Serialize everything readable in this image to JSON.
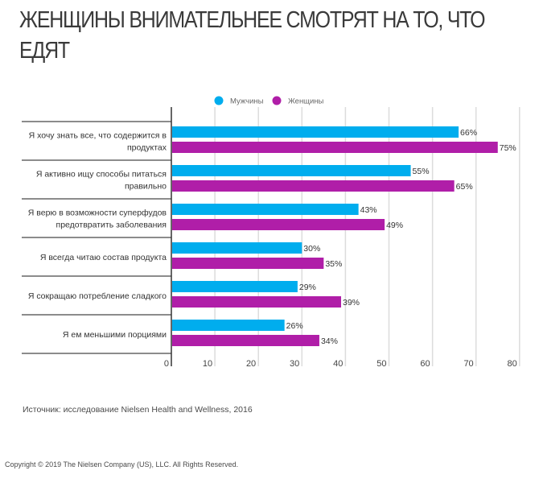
{
  "page": {
    "title": "ЖЕНЩИНЫ ВНИМАТЕЛЬНЕЕ СМОТРЯТ НА ТО, ЧТО ЕДЯТ",
    "source": "Источник: исследование Nielsen Health and Wellness, 2016",
    "copyright": "Copyright © 2019 The Nielsen Company (US), LLC. All Rights Reserved."
  },
  "chart_data": {
    "type": "bar",
    "orientation": "horizontal",
    "title": "ЖЕНЩИНЫ ВНИМАТЕЛЬНЕЕ СМОТРЯТ НА ТО, ЧТО ЕДЯТ",
    "xlabel": "",
    "ylabel": "",
    "xlim": [
      0,
      80
    ],
    "xticks": [
      0,
      10,
      20,
      30,
      40,
      50,
      60,
      70,
      80
    ],
    "grid": true,
    "legend_position": "top-center",
    "categories": [
      [
        "Я хочу знать все, что содержится в",
        "продуктах"
      ],
      [
        "Я активно ищу способы питаться",
        "правильно"
      ],
      [
        "Я верю в возможности суперфудов",
        "предотвратить заболевания"
      ],
      [
        "Я всегда читаю состав продукта"
      ],
      [
        "Я сокращаю потребление сладкого"
      ],
      [
        "Я ем меньшими порциями"
      ]
    ],
    "series": [
      {
        "name": "Мужчины",
        "color": "#00adee",
        "values": [
          66,
          55,
          43,
          30,
          29,
          26
        ]
      },
      {
        "name": "Женщины",
        "color": "#b01ea8",
        "values": [
          75,
          65,
          49,
          35,
          39,
          34
        ]
      }
    ],
    "value_suffix": "%"
  }
}
